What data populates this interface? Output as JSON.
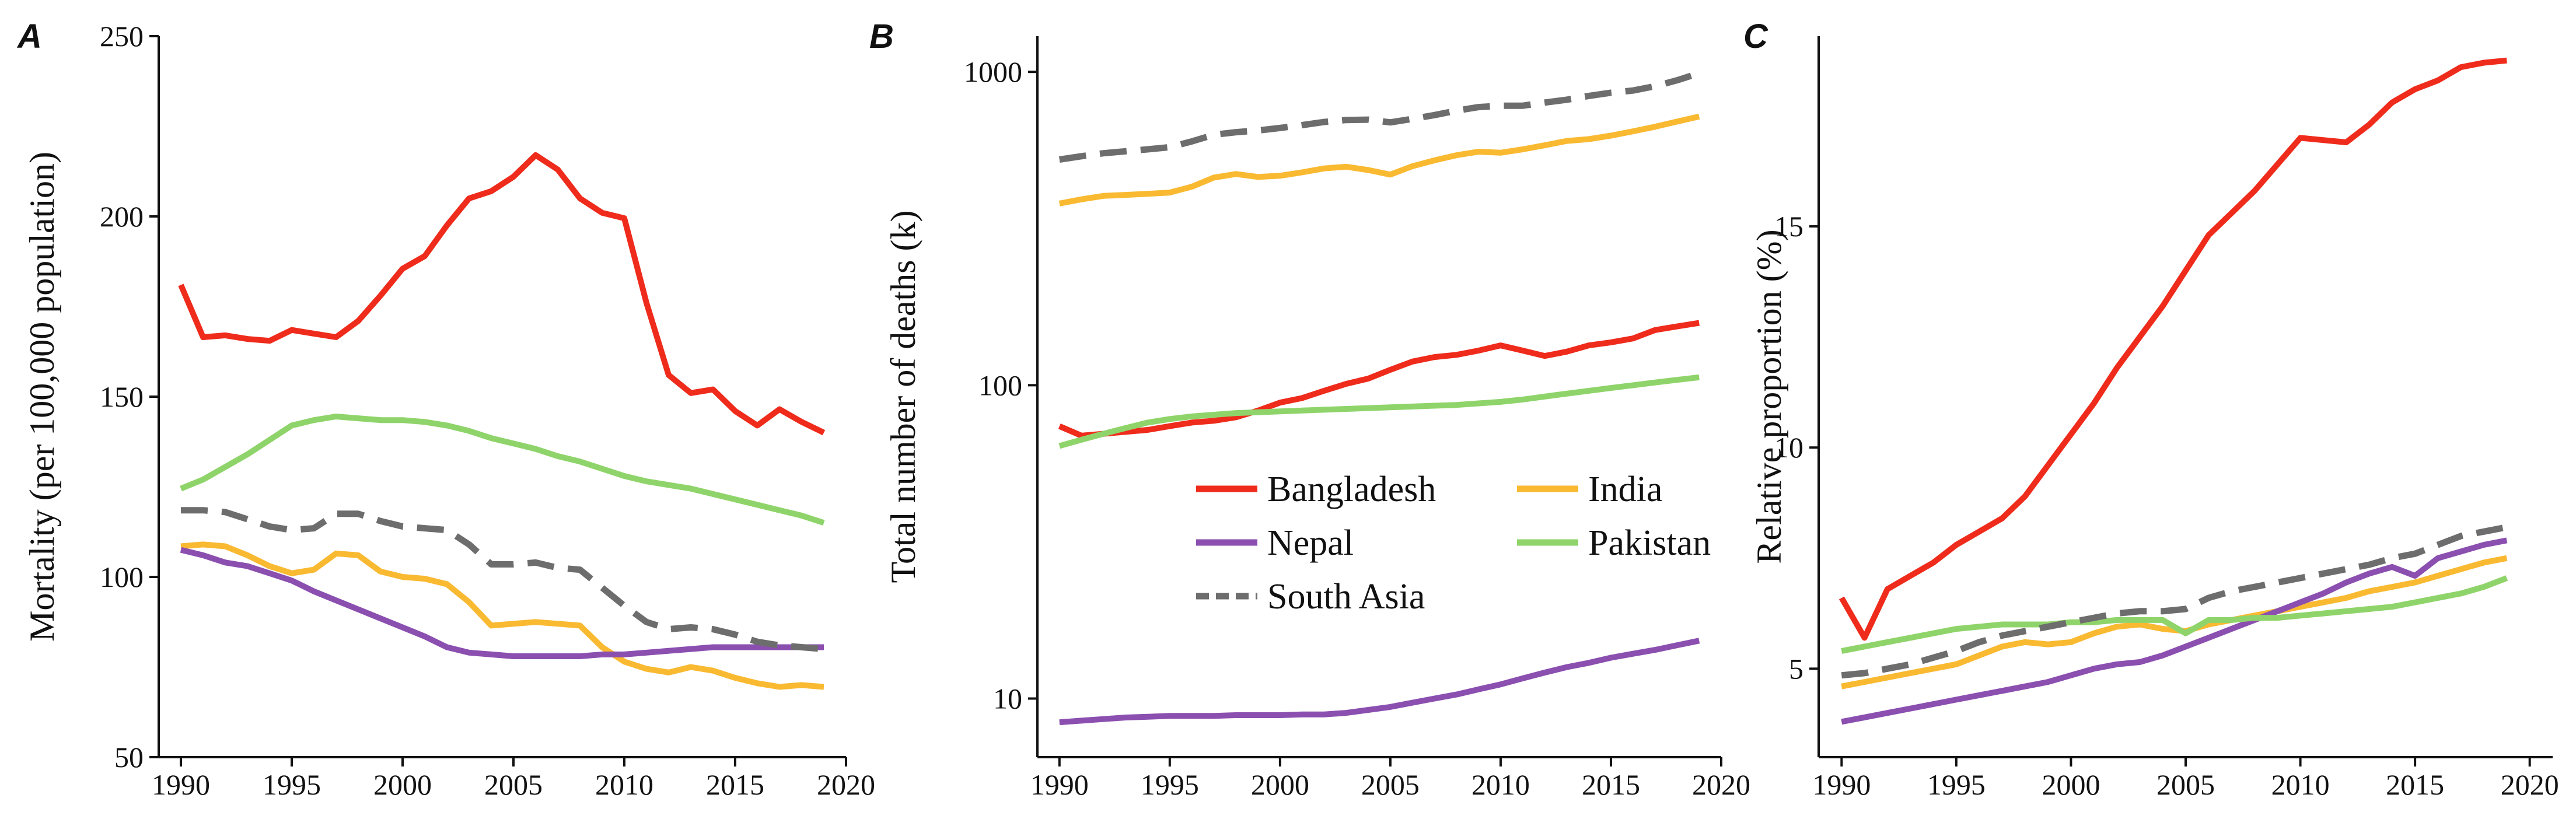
{
  "chart_data": [
    {
      "type": "line",
      "panel_letter": "A",
      "title": "",
      "xlabel": "",
      "ylabel": "Mortality (per 100,000 population)",
      "yscale": "linear",
      "xlim": [
        1989,
        2020
      ],
      "ylim": [
        50,
        250
      ],
      "xticks": [
        1990,
        1995,
        2000,
        2005,
        2010,
        2015,
        2020
      ],
      "yticks": [
        50,
        100,
        150,
        200,
        250
      ],
      "x": [
        1990,
        1991,
        1992,
        1993,
        1994,
        1995,
        1996,
        1997,
        1998,
        1999,
        2000,
        2001,
        2002,
        2003,
        2004,
        2005,
        2006,
        2007,
        2008,
        2009,
        2010,
        2011,
        2012,
        2013,
        2014,
        2015,
        2016,
        2017,
        2018,
        2019
      ],
      "series": [
        {
          "name": "Bangladesh",
          "values": [
            181,
            166.5,
            167,
            166,
            165.5,
            168.5,
            167.5,
            166.5,
            171,
            178,
            185.5,
            189,
            197.5,
            205,
            207,
            211,
            217,
            213,
            205,
            201,
            199.5,
            176,
            156,
            151,
            152,
            146,
            142,
            146.5,
            143,
            140
          ]
        },
        {
          "name": "India",
          "values": [
            108.5,
            109,
            108.5,
            106,
            103,
            101,
            102,
            106.5,
            106,
            101.5,
            100,
            99.5,
            98,
            93,
            86.5,
            87,
            87.5,
            87,
            86.5,
            80.5,
            76.5,
            74.5,
            73.5,
            75,
            74,
            72,
            70.5,
            69.5,
            70,
            69.5
          ]
        },
        {
          "name": "Nepal",
          "values": [
            107.5,
            106,
            104,
            103,
            101,
            99,
            96,
            93.5,
            91,
            88.5,
            86,
            83.5,
            80.5,
            79,
            78.5,
            78,
            78,
            78,
            78,
            78.5,
            78.5,
            79,
            79.5,
            80,
            80.5,
            80.5,
            80.5,
            80.5,
            80.5,
            80.5
          ]
        },
        {
          "name": "Pakistan",
          "values": [
            124.5,
            127,
            130.5,
            134,
            138,
            142,
            143.5,
            144.5,
            144,
            143.5,
            143.5,
            143,
            142,
            140.5,
            138.5,
            137,
            135.5,
            133.5,
            132,
            130,
            128,
            126.5,
            125.5,
            124.5,
            123,
            121.5,
            120,
            118.5,
            117,
            115
          ]
        },
        {
          "name": "South Asia",
          "values": [
            118.5,
            118.5,
            118,
            116,
            114,
            113,
            113.5,
            117.5,
            117.5,
            115.5,
            114,
            113.5,
            113,
            109,
            103.5,
            103.5,
            104,
            102.5,
            102,
            97,
            92,
            87.5,
            85.5,
            86,
            85.5,
            84,
            82,
            81,
            80.5,
            80
          ]
        }
      ]
    },
    {
      "type": "line",
      "panel_letter": "B",
      "title": "",
      "xlabel": "",
      "ylabel": "Total number of deaths (k)",
      "yscale": "log",
      "xlim": [
        1989,
        2020
      ],
      "ylim": [
        6.5,
        1300
      ],
      "xticks": [
        1990,
        1995,
        2000,
        2005,
        2010,
        2015,
        2020
      ],
      "yticks": [
        10,
        100,
        1000
      ],
      "x": [
        1990,
        1991,
        1992,
        1993,
        1994,
        1995,
        1996,
        1997,
        1998,
        1999,
        2000,
        2001,
        2002,
        2003,
        2004,
        2005,
        2006,
        2007,
        2008,
        2009,
        2010,
        2011,
        2012,
        2013,
        2014,
        2015,
        2016,
        2017,
        2018,
        2019
      ],
      "series": [
        {
          "name": "Bangladesh",
          "values": [
            74,
            69,
            70,
            71,
            72,
            74,
            76,
            77,
            79,
            83,
            88,
            91,
            96,
            101,
            105,
            112,
            119,
            123,
            125,
            129,
            134,
            129,
            124,
            128,
            134,
            137,
            141,
            150,
            154,
            158
          ]
        },
        {
          "name": "India",
          "values": [
            380,
            392,
            402,
            405,
            408,
            412,
            430,
            460,
            472,
            462,
            466,
            478,
            492,
            498,
            486,
            470,
            500,
            522,
            542,
            556,
            552,
            566,
            583,
            602,
            610,
            626,
            646,
            668,
            694,
            720
          ]
        },
        {
          "name": "Nepal",
          "values": [
            8.4,
            8.5,
            8.6,
            8.7,
            8.75,
            8.8,
            8.8,
            8.8,
            8.85,
            8.85,
            8.85,
            8.9,
            8.9,
            9.0,
            9.2,
            9.4,
            9.7,
            10.0,
            10.3,
            10.7,
            11.1,
            11.6,
            12.1,
            12.6,
            13.0,
            13.5,
            13.9,
            14.3,
            14.8,
            15.3
          ]
        },
        {
          "name": "Pakistan",
          "values": [
            64,
            67,
            70,
            73,
            76,
            78,
            79.5,
            80.5,
            81.5,
            82,
            82.5,
            83,
            83.5,
            84,
            84.5,
            85,
            85.5,
            86,
            86.5,
            87.5,
            88.5,
            90,
            92,
            94,
            96,
            98,
            100,
            102,
            104,
            106
          ]
        },
        {
          "name": "South Asia",
          "values": [
            525,
            538,
            550,
            558,
            566,
            575,
            600,
            630,
            642,
            650,
            662,
            676,
            692,
            702,
            704,
            690,
            708,
            728,
            752,
            772,
            780,
            780,
            798,
            815,
            838,
            858,
            872,
            900,
            940,
            990
          ]
        }
      ],
      "legend": {
        "placement": "center-right",
        "entries": [
          "Bangladesh",
          "India",
          "Nepal",
          "Pakistan",
          "South Asia"
        ]
      }
    },
    {
      "type": "line",
      "panel_letter": "C",
      "title": "",
      "xlabel": "",
      "ylabel": "Relative proportion (%)",
      "yscale": "linear",
      "xlim": [
        1989,
        2021
      ],
      "ylim": [
        3.0,
        19.3
      ],
      "xticks": [
        1990,
        1995,
        2000,
        2005,
        2010,
        2015,
        2020
      ],
      "yticks": [
        5,
        10,
        15
      ],
      "x": [
        1990,
        1991,
        1992,
        1993,
        1994,
        1995,
        1996,
        1997,
        1998,
        1999,
        2000,
        2001,
        2002,
        2003,
        2004,
        2005,
        2006,
        2007,
        2008,
        2009,
        2010,
        2011,
        2012,
        2013,
        2014,
        2015,
        2016,
        2017,
        2018,
        2019
      ],
      "series": [
        {
          "name": "Bangladesh",
          "values": [
            6.6,
            5.7,
            6.8,
            7.1,
            7.4,
            7.8,
            8.1,
            8.4,
            8.9,
            9.6,
            10.3,
            11.0,
            11.8,
            12.5,
            13.2,
            14.0,
            14.8,
            15.3,
            15.8,
            16.4,
            17.0,
            16.95,
            16.9,
            17.3,
            17.8,
            18.1,
            18.3,
            18.6,
            18.7,
            18.75
          ]
        },
        {
          "name": "India",
          "values": [
            4.6,
            4.7,
            4.8,
            4.9,
            5.0,
            5.1,
            5.3,
            5.5,
            5.6,
            5.55,
            5.6,
            5.8,
            5.95,
            6.0,
            5.9,
            5.85,
            6.0,
            6.1,
            6.2,
            6.3,
            6.4,
            6.5,
            6.6,
            6.75,
            6.85,
            6.95,
            7.1,
            7.25,
            7.4,
            7.5
          ]
        },
        {
          "name": "Nepal",
          "values": [
            3.8,
            3.9,
            4.0,
            4.1,
            4.2,
            4.3,
            4.4,
            4.5,
            4.6,
            4.7,
            4.85,
            5.0,
            5.1,
            5.15,
            5.3,
            5.5,
            5.7,
            5.9,
            6.1,
            6.3,
            6.5,
            6.7,
            6.95,
            7.15,
            7.3,
            7.1,
            7.5,
            7.65,
            7.8,
            7.9
          ]
        },
        {
          "name": "Pakistan",
          "values": [
            5.4,
            5.5,
            5.6,
            5.7,
            5.8,
            5.9,
            5.95,
            6.0,
            6.0,
            6.0,
            6.05,
            6.05,
            6.1,
            6.1,
            6.1,
            5.8,
            6.1,
            6.1,
            6.15,
            6.15,
            6.2,
            6.25,
            6.3,
            6.35,
            6.4,
            6.5,
            6.6,
            6.7,
            6.85,
            7.05
          ]
        },
        {
          "name": "South Asia",
          "values": [
            4.85,
            4.9,
            5.0,
            5.1,
            5.25,
            5.4,
            5.6,
            5.75,
            5.85,
            5.95,
            6.05,
            6.15,
            6.25,
            6.3,
            6.3,
            6.35,
            6.6,
            6.75,
            6.85,
            6.95,
            7.05,
            7.15,
            7.25,
            7.35,
            7.5,
            7.6,
            7.8,
            8.0,
            8.1,
            8.2
          ]
        }
      ]
    }
  ],
  "series_colors": {
    "Bangladesh": "#ef2b1c",
    "India": "#f9b931",
    "Nepal": "#8b4fb0",
    "Pakistan": "#8fd46a",
    "South Asia": "#6d6d6d"
  },
  "dashed_series": [
    "South Asia"
  ],
  "axis_color": "#111111"
}
